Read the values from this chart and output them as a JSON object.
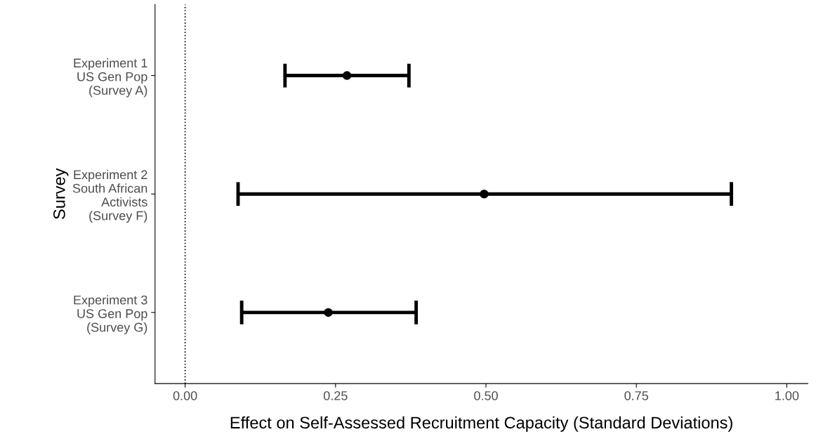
{
  "chart_data": {
    "type": "scatter",
    "orientation": "horizontal",
    "xlabel": "Effect on Self-Assessed Recruitment Capacity (Standard Deviations)",
    "ylabel": "Survey",
    "categories": [
      "Experiment 1\nUS Gen Pop\n(Survey A)",
      "Experiment 2\nSouth African\nActivists\n(Survey F)",
      "Experiment 3\nUS Gen Pop\n(Survey G)"
    ],
    "values": [
      0.269,
      0.497,
      0.238
    ],
    "errors": [
      [
        0.166,
        0.372
      ],
      [
        0.088,
        0.908
      ],
      [
        0.094,
        0.384
      ]
    ],
    "color": "#000000",
    "marker": "circle",
    "xlim": [
      -0.05,
      1.035
    ],
    "xticks": [
      {
        "value": 0,
        "label": "0.00"
      },
      {
        "value": 0.25,
        "label": "0.25"
      },
      {
        "value": 0.5,
        "label": "0.50"
      },
      {
        "value": 0.75,
        "label": "0.75"
      },
      {
        "value": 1,
        "label": "1.00"
      }
    ],
    "ref_lines": [
      {
        "axis": "x",
        "value": 0,
        "label": null,
        "line_style": "dotted",
        "color": "#000000"
      }
    ],
    "grid": false
  }
}
